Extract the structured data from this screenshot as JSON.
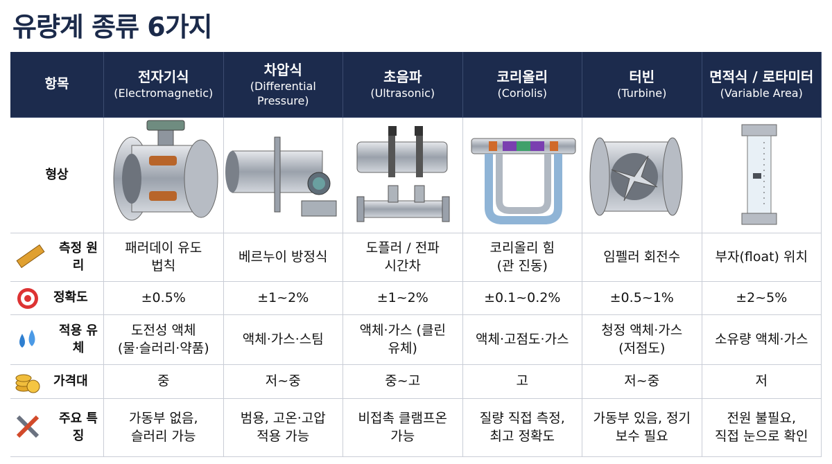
{
  "header": {
    "title": "유량계 종류 6가지"
  },
  "table": {
    "header_label": "항목",
    "columns": [
      {
        "name": "전자기식",
        "english": "(Electromagnetic)"
      },
      {
        "name": "차압식",
        "english": "(Differential\nPressure)"
      },
      {
        "name": "초음파",
        "english": "(Ultrasonic)"
      },
      {
        "name": "코리올리",
        "english": "(Coriolis)"
      },
      {
        "name": "터빈",
        "english": "(Turbine)"
      },
      {
        "name": "면적식 / 로타미터",
        "english": "(Variable Area)"
      }
    ],
    "shape_label": "형상",
    "rows": [
      {
        "label": "측정 원리",
        "cells": [
          "패러데이 유도\n법칙",
          "베르누이 방정식",
          "도플러 / 전파\n시간차",
          "코리올리 힘\n(관 진동)",
          "임펠러 회전수",
          "부자(float) 위치"
        ]
      },
      {
        "label": "정확도",
        "cells": [
          "±0.5%",
          "±1~2%",
          "±1~2%",
          "±0.1~0.2%",
          "±0.5~1%",
          "±2~5%"
        ]
      },
      {
        "label": "적용 유체",
        "cells": [
          "도전성 액체\n(물·슬러리·약품)",
          "액체·가스·스팀",
          "액체·가스 (클린\n유체)",
          "액체·고점도·가스",
          "청정 액체·가스\n(저점도)",
          "소유량 액체·가스"
        ]
      },
      {
        "label": "가격대",
        "cells": [
          "중",
          "저~중",
          "중~고",
          "고",
          "저~중",
          "저"
        ]
      },
      {
        "label": "주요 특징",
        "cells": [
          "가동부 없음,\n슬러리 가능",
          "범용, 고온·고압\n적용 가능",
          "비접촉 클램프온\n가능",
          "질량 직접 측정,\n최고 정확도",
          "가동부 있음, 정기\n보수 필요",
          "전원 불필요,\n직접 눈으로 확인"
        ]
      }
    ]
  }
}
